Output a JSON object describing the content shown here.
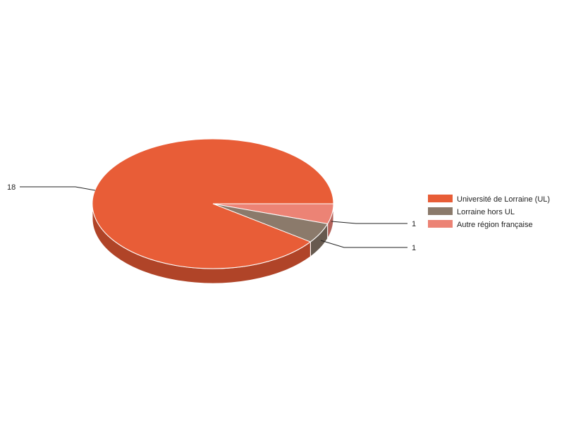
{
  "chart_data": {
    "type": "pie",
    "style": "3d",
    "title": "",
    "legend_position": "right",
    "slices": [
      {
        "label": "Université de Lorraine (UL)",
        "value": 18,
        "color": "#E85D37",
        "side_color": "#B04428"
      },
      {
        "label": "Lorraine hors UL",
        "value": 1,
        "color": "#8B7A6B",
        "side_color": "#675A4F"
      },
      {
        "label": "Autre région française",
        "value": 1,
        "color": "#EC8375",
        "side_color": "#B3625A"
      }
    ]
  }
}
